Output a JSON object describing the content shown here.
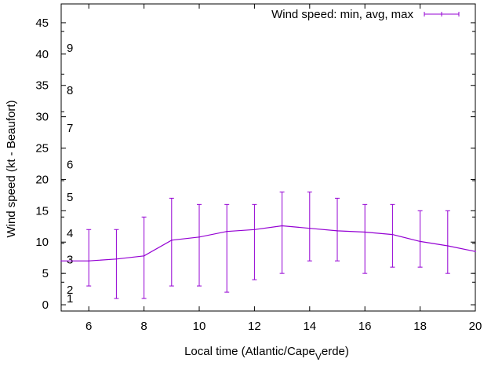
{
  "chart_data": {
    "type": "line",
    "title": "",
    "xlabel": "Local time (Atlantic/Cape Verde)",
    "xlabel_main": "Local time (Atlantic/Cape",
    "xlabel_sub": "V",
    "xlabel_tail": "erde)",
    "ylabel": "Wind speed (kt - Beaufort)",
    "xlim": [
      5,
      20
    ],
    "ylim": [
      -1,
      48
    ],
    "x_ticks": [
      6,
      8,
      10,
      12,
      14,
      16,
      18,
      20
    ],
    "x_tick_labels": [
      "6",
      "8",
      "10",
      "12",
      "14",
      "16",
      "18",
      "20"
    ],
    "y_ticks": [
      0,
      5,
      10,
      15,
      20,
      25,
      30,
      35,
      40,
      45
    ],
    "y_tick_labels": [
      "0",
      "5",
      "10",
      "15",
      "20",
      "25",
      "30",
      "35",
      "40",
      "45"
    ],
    "grid": false,
    "legend_position": "top-right",
    "series": [
      {
        "name": "Wind speed: min, avg, max",
        "color": "#9400d3",
        "x": [
          5,
          6,
          7,
          8,
          9,
          10,
          11,
          12,
          13,
          14,
          15,
          16,
          17,
          18,
          19,
          20
        ],
        "avg": [
          7.0,
          7.0,
          7.3,
          7.8,
          10.3,
          10.8,
          11.7,
          12.0,
          12.6,
          12.2,
          11.8,
          11.6,
          11.2,
          10.1,
          9.4,
          8.5
        ],
        "min": [
          null,
          3,
          1,
          1,
          3,
          3,
          2,
          4,
          5,
          7,
          7,
          5,
          6,
          6,
          5,
          null
        ],
        "max": [
          null,
          12,
          12,
          14,
          17,
          16,
          16,
          16,
          18,
          18,
          17,
          16,
          16,
          15,
          15,
          null
        ]
      }
    ],
    "beaufort_scale": {
      "labels": [
        "1",
        "2",
        "3",
        "4",
        "5",
        "6",
        "7",
        "8",
        "9"
      ],
      "values": [
        1,
        2.4,
        7.2,
        11.4,
        17.2,
        22.4,
        28.2,
        34.2,
        41
      ]
    }
  }
}
